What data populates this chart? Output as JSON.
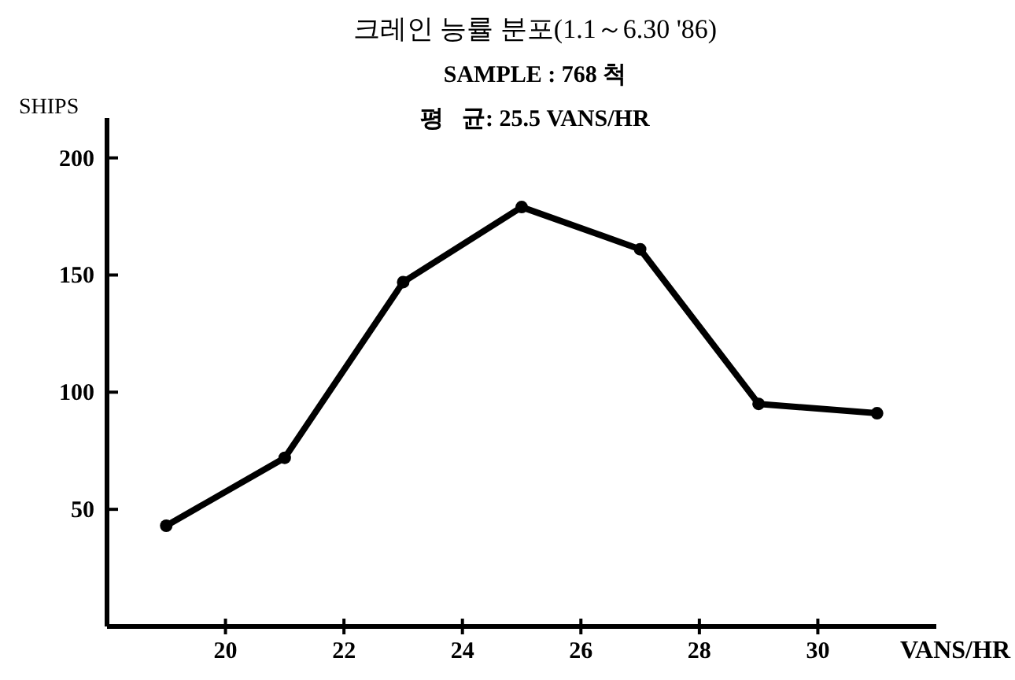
{
  "chart_data": {
    "type": "line",
    "title": "크레인 능률 분포(1.1～6.30 '86)",
    "subtitle": "SAMPLE : 768 척",
    "annotations": [
      "평   균: 25.5 VANS/HR"
    ],
    "xlabel": "VANS/HR",
    "ylabel": "SHIPS",
    "x": [
      19,
      21,
      23,
      25,
      27,
      29,
      31
    ],
    "series": [
      {
        "color": "#000000",
        "values": [
          43,
          72,
          147,
          179,
          161,
          95,
          91
        ]
      }
    ],
    "xlim": [
      18,
      32
    ],
    "xticks": [
      20,
      22,
      24,
      26,
      28,
      30
    ],
    "ylim": [
      0,
      217
    ],
    "yticks": [
      50,
      100,
      150,
      200
    ],
    "marker": "circle",
    "line_style": "solid"
  }
}
